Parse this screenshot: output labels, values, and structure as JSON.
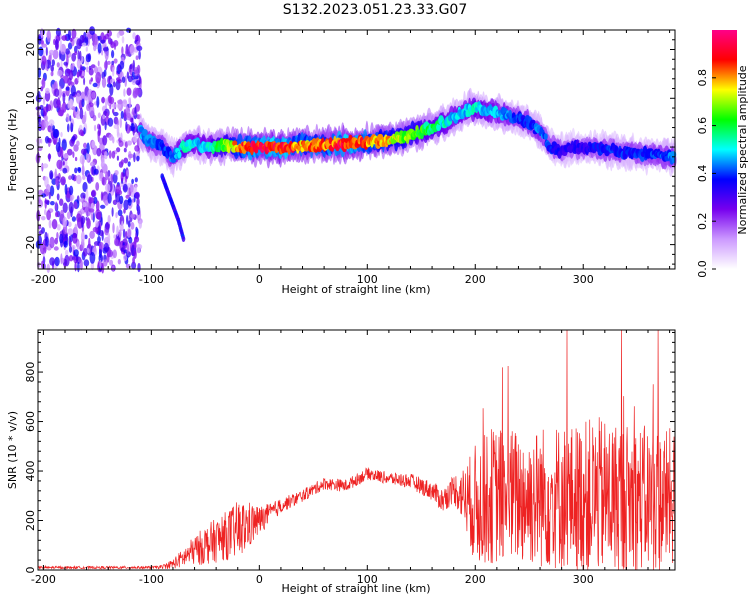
{
  "figure": {
    "title": "S132.2023.051.23.33.G07"
  },
  "chart_data": [
    {
      "type": "heatmap",
      "xlabel": "Height of straight line (km)",
      "ylabel": "Frequency (Hz)",
      "xlim": [
        -205,
        385
      ],
      "ylim": [
        -25,
        24
      ],
      "xticks": [
        -200,
        -100,
        0,
        100,
        200,
        300
      ],
      "xtick_labels": [
        "-200",
        "-100",
        "0",
        "100",
        "200",
        "300"
      ],
      "yticks": [
        -20,
        -10,
        0,
        10,
        20
      ],
      "ytick_labels": [
        "-20",
        "-10",
        "0",
        "10",
        "20"
      ],
      "grid": false,
      "colorbar": {
        "label": "Normalized spectral amplitude",
        "range": [
          0,
          1
        ],
        "ticks": [
          0.0,
          0.2,
          0.4,
          0.6,
          0.8
        ],
        "tick_labels": [
          "0.0",
          "0.2",
          "0.4",
          "0.6",
          "0.8"
        ],
        "colormap": [
          "#ffffff",
          "#cc99ff",
          "#7700ee",
          "#0000ff",
          "#00ffff",
          "#00ff00",
          "#ffff00",
          "#ff0000",
          "#ff0088"
        ]
      },
      "noise_region_x": [
        -205,
        -110
      ],
      "ridge": {
        "x": [
          -110,
          -100,
          -90,
          -80,
          -70,
          -60,
          -50,
          -40,
          -30,
          -20,
          -10,
          0,
          20,
          40,
          60,
          80,
          100,
          120,
          140,
          160,
          180,
          190,
          200,
          210,
          220,
          230,
          240,
          250,
          260,
          270,
          280,
          290,
          300,
          320,
          340,
          360,
          385
        ],
        "freq": [
          3,
          1,
          0,
          -2,
          0,
          1,
          0,
          0,
          0.5,
          0,
          0,
          0,
          0,
          0.3,
          0.5,
          0.7,
          1,
          1.5,
          2.5,
          4,
          6,
          7.5,
          8,
          7.5,
          7,
          6.5,
          6,
          5,
          3,
          0,
          -1,
          0,
          0,
          -0.5,
          -1,
          -1.5,
          -2
        ],
        "amplitude": [
          0.5,
          0.45,
          0.4,
          0.45,
          0.55,
          0.5,
          0.5,
          0.6,
          0.7,
          0.85,
          0.9,
          0.95,
          0.95,
          0.85,
          0.85,
          0.95,
          0.85,
          0.8,
          0.7,
          0.6,
          0.5,
          0.5,
          0.55,
          0.5,
          0.5,
          0.45,
          0.4,
          0.4,
          0.45,
          0.4,
          0.35,
          0.35,
          0.35,
          0.4,
          0.4,
          0.4,
          0.45
        ]
      },
      "secondary_branch": {
        "x": [
          -90,
          -85,
          -80,
          -75,
          -70
        ],
        "freq": [
          -6,
          -9,
          -12,
          -15,
          -19
        ]
      }
    },
    {
      "type": "line",
      "xlabel": "Height of straight line (km)",
      "ylabel": "SNR (10 * v/v)",
      "xlim": [
        -205,
        385
      ],
      "ylim": [
        0,
        970
      ],
      "xticks": [
        -200,
        -100,
        0,
        100,
        200,
        300
      ],
      "xtick_labels": [
        "-200",
        "-100",
        "0",
        "100",
        "200",
        "300"
      ],
      "yticks": [
        0,
        200,
        400,
        600,
        800
      ],
      "ytick_labels": [
        "0",
        "200",
        "400",
        "600",
        "800"
      ],
      "grid": false,
      "series": [
        {
          "color": "#ee2222",
          "envelope": {
            "x": [
              -205,
              -100,
              -90,
              -80,
              -70,
              -60,
              -50,
              -40,
              -30,
              -20,
              -10,
              0,
              10,
              20,
              40,
              60,
              80,
              100,
              120,
              140,
              160,
              170,
              180,
              190,
              200,
              215,
              230,
              250,
              270,
              290,
              310,
              330,
              350,
              370,
              385
            ],
            "mean": [
              10,
              10,
              12,
              25,
              50,
              80,
              100,
              120,
              140,
              160,
              180,
              200,
              230,
              260,
              300,
              350,
              340,
              390,
              370,
              360,
              320,
              280,
              330,
              300,
              260,
              300,
              300,
              290,
              300,
              290,
              300,
              290,
              290,
              280,
              290
            ],
            "spread": [
              5,
              5,
              8,
              20,
              40,
              60,
              80,
              90,
              100,
              120,
              100,
              60,
              40,
              30,
              25,
              25,
              25,
              25,
              25,
              30,
              40,
              50,
              60,
              120,
              250,
              280,
              280,
              280,
              300,
              300,
              320,
              320,
              300,
              300,
              280
            ]
          }
        }
      ]
    }
  ]
}
